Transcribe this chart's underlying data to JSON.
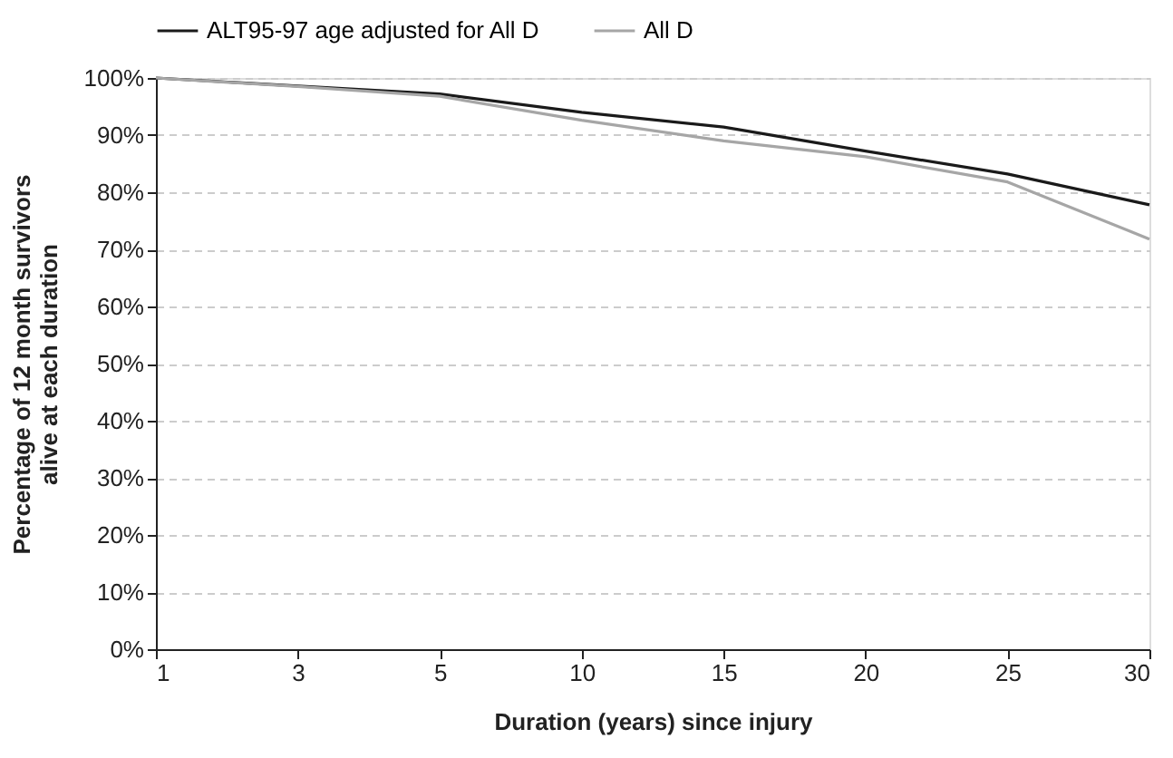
{
  "chart_data": {
    "type": "line",
    "xlabel": "Duration (years) since injury",
    "ylabel": "Percentage of 12 month survivors alive at each duration",
    "categories": [
      "1",
      "3",
      "5",
      "10",
      "15",
      "20",
      "25",
      "30"
    ],
    "series": [
      {
        "name": "ALT95-97 age adjusted for All D",
        "color": "#1a1a1a",
        "values": [
          100,
          98.6,
          97.2,
          94,
          91.4,
          87.2,
          83.2,
          77.8
        ]
      },
      {
        "name": "All D",
        "color": "#a6a6a6",
        "values": [
          100,
          98.5,
          96.8,
          92.6,
          89,
          86.2,
          81.8,
          71.8
        ]
      }
    ],
    "ylim": [
      0,
      100
    ],
    "yticks": [
      {
        "value": 0,
        "label": "0%"
      },
      {
        "value": 10,
        "label": "10%"
      },
      {
        "value": 20,
        "label": "20%"
      },
      {
        "value": 30,
        "label": "30%"
      },
      {
        "value": 40,
        "label": "40%"
      },
      {
        "value": 50,
        "label": "50%"
      },
      {
        "value": 60,
        "label": "60%"
      },
      {
        "value": 70,
        "label": "70%"
      },
      {
        "value": 80,
        "label": "80%"
      },
      {
        "value": 90,
        "label": "90%"
      },
      {
        "value": 100,
        "label": "100%"
      }
    ],
    "grid": "y",
    "legend": "top",
    "marker": "none",
    "line_style": "solid"
  }
}
